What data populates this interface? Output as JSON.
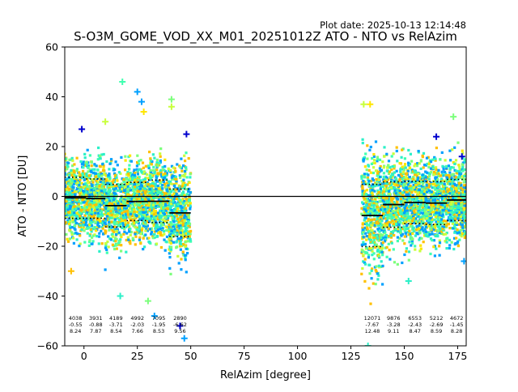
{
  "figure": {
    "plot_date": "Plot date: 2025-10-13 12:14:48",
    "title": "S-O3M_GOME_VOD_XX_M01_20251012Z ATO - NTO vs RelAzim"
  },
  "chart_data": {
    "type": "scatter",
    "title": "S-O3M_GOME_VOD_XX_M01_20251012Z ATO - NTO vs RelAzim",
    "xlabel": "RelAzim [degree]",
    "ylabel": "ATO - NTO [DU]",
    "xlim": [
      -9,
      179
    ],
    "ylim": [
      -60,
      60
    ],
    "xticks": [
      0,
      25,
      50,
      75,
      100,
      125,
      150,
      175
    ],
    "yticks": [
      -60,
      -40,
      -20,
      0,
      20,
      40,
      60
    ],
    "zero_line": 0,
    "colormap": [
      "#0000cd",
      "#00a0ff",
      "#2cf0c8",
      "#40ffb0",
      "#7cff7c",
      "#c8ff3c",
      "#ffe600",
      "#ffc000"
    ],
    "bins": [
      {
        "x_start": -9,
        "x_end": 1,
        "count": "4038",
        "mean": "-0.55",
        "std": "8.24",
        "mean_value": -0.55,
        "std_value": 8.24
      },
      {
        "x_start": 1,
        "x_end": 10,
        "count": "3931",
        "mean": "-0.88",
        "std": "7.87",
        "mean_value": -0.88,
        "std_value": 7.87
      },
      {
        "x_start": 10,
        "x_end": 20,
        "count": "4189",
        "mean": "-3.71",
        "std": "8.54",
        "mean_value": -3.71,
        "std_value": 8.54
      },
      {
        "x_start": 20,
        "x_end": 30,
        "count": "4992",
        "mean": "-2.03",
        "std": "7.66",
        "mean_value": -2.03,
        "std_value": 7.66
      },
      {
        "x_start": 30,
        "x_end": 40,
        "count": "7095",
        "mean": "-1.95",
        "std": "8.53",
        "mean_value": -1.95,
        "std_value": 8.53
      },
      {
        "x_start": 40,
        "x_end": 50,
        "count": "2890",
        "mean": "-6.62",
        "std": "9.56",
        "mean_value": -6.62,
        "std_value": 9.56
      },
      {
        "x_start": 130,
        "x_end": 140,
        "count": "12071",
        "mean": "-7.67",
        "std": "12.48",
        "mean_value": -7.67,
        "std_value": 12.48
      },
      {
        "x_start": 140,
        "x_end": 150,
        "count": "9876",
        "mean": "-3.28",
        "std": "9.11",
        "mean_value": -3.28,
        "std_value": 9.11
      },
      {
        "x_start": 150,
        "x_end": 160,
        "count": "6553",
        "mean": "-2.43",
        "std": "8.47",
        "mean_value": -2.43,
        "std_value": 8.47
      },
      {
        "x_start": 160,
        "x_end": 170,
        "count": "5212",
        "mean": "-2.69",
        "std": "8.59",
        "mean_value": -2.69,
        "std_value": 8.59
      },
      {
        "x_start": 170,
        "x_end": 179,
        "count": "4672",
        "mean": "-1.45",
        "std": "8.28",
        "mean_value": -1.45,
        "std_value": 8.28
      }
    ],
    "outliers": [
      {
        "x": 18,
        "y": 46,
        "color": "#40ffb0"
      },
      {
        "x": 25,
        "y": 42,
        "color": "#00a0ff"
      },
      {
        "x": 27,
        "y": 38,
        "color": "#00a0ff"
      },
      {
        "x": 28,
        "y": 34,
        "color": "#ffe600"
      },
      {
        "x": 41,
        "y": 39,
        "color": "#7cff7c"
      },
      {
        "x": 41,
        "y": 36,
        "color": "#c8ff3c"
      },
      {
        "x": -1,
        "y": 27,
        "color": "#0000cd"
      },
      {
        "x": 48,
        "y": 25,
        "color": "#0000cd"
      },
      {
        "x": 10,
        "y": 30,
        "color": "#c8ff3c"
      },
      {
        "x": -6,
        "y": -30,
        "color": "#ffc000"
      },
      {
        "x": 17,
        "y": -40,
        "color": "#2cf0c8"
      },
      {
        "x": 30,
        "y": -42,
        "color": "#7cff7c"
      },
      {
        "x": 47,
        "y": -57,
        "color": "#00a0ff"
      },
      {
        "x": 45,
        "y": -52,
        "color": "#0000cd"
      },
      {
        "x": 33,
        "y": -48,
        "color": "#00a0ff"
      },
      {
        "x": 131,
        "y": 37,
        "color": "#c8ff3c"
      },
      {
        "x": 134,
        "y": 37,
        "color": "#ffe600"
      },
      {
        "x": 133,
        "y": -60,
        "color": "#2cf0c8"
      },
      {
        "x": 152,
        "y": -34,
        "color": "#2cf0c8"
      },
      {
        "x": 173,
        "y": 32,
        "color": "#7cff7c"
      },
      {
        "x": 178,
        "y": -26,
        "color": "#00a0ff"
      },
      {
        "x": 165,
        "y": 24,
        "color": "#0000cd"
      },
      {
        "x": 177,
        "y": 16,
        "color": "#0000cd"
      }
    ]
  }
}
